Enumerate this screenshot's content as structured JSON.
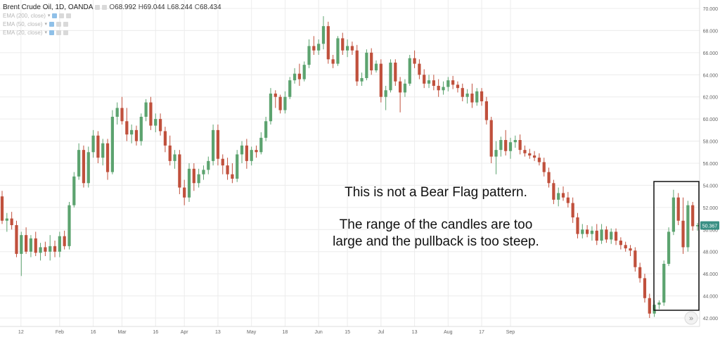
{
  "header": {
    "symbol": "Brent Crude Oil, 1D, OANDA",
    "open_label": "O",
    "open": "68.992",
    "high_label": "H",
    "high": "69.044",
    "low_label": "L",
    "low": "68.244",
    "close_label": "C",
    "close": "68.434",
    "indicators": [
      "EMA (200, close)",
      "EMA (50, close)",
      "EMA (20, close)"
    ]
  },
  "annotation": {
    "line1": "This is not a Bear Flag pattern.",
    "line2": "The range of the candles are too",
    "line3": "large and the pullback is too steep."
  },
  "scroll_button": "»",
  "colors": {
    "up": "#5ca36f",
    "down": "#c0503c",
    "grid": "#ececec",
    "price_tag": "#3a8f84"
  },
  "chart_data": {
    "type": "candlestick",
    "symbol": "Brent Crude Oil, 1D, OANDA",
    "ylim": [
      41,
      70.5
    ],
    "y_ticks": [
      "70.000",
      "68.000",
      "66.000",
      "64.000",
      "62.000",
      "60.000",
      "58.000",
      "56.000",
      "54.000",
      "52.000",
      "50.000",
      "48.000",
      "46.000",
      "44.000",
      "42.000"
    ],
    "x_ticks": [
      "12",
      "Feb",
      "16",
      "Mar",
      "16",
      "Apr",
      "13",
      "May",
      "18",
      "Jun",
      "15",
      "Jul",
      "13",
      "Aug",
      "17",
      "Sep"
    ],
    "x_tick_pos": [
      1,
      12,
      19,
      25,
      32,
      38,
      45,
      52,
      59,
      66,
      72,
      79,
      86,
      93,
      100,
      106
    ],
    "last_price": "50.367",
    "candles": [
      {
        "o": 53.0,
        "h": 53.5,
        "l": 50.5,
        "c": 50.8
      },
      {
        "o": 50.8,
        "h": 51.5,
        "l": 49.8,
        "c": 51.0
      },
      {
        "o": 51.0,
        "h": 51.6,
        "l": 50.0,
        "c": 50.4
      },
      {
        "o": 50.4,
        "h": 50.8,
        "l": 47.5,
        "c": 47.8
      },
      {
        "o": 47.8,
        "h": 49.8,
        "l": 45.8,
        "c": 49.5
      },
      {
        "o": 49.5,
        "h": 50.2,
        "l": 47.8,
        "c": 48.0
      },
      {
        "o": 48.0,
        "h": 49.5,
        "l": 47.5,
        "c": 49.2
      },
      {
        "o": 49.2,
        "h": 49.8,
        "l": 47.6,
        "c": 47.9
      },
      {
        "o": 47.9,
        "h": 48.8,
        "l": 47.2,
        "c": 48.4
      },
      {
        "o": 48.4,
        "h": 48.9,
        "l": 47.6,
        "c": 48.0
      },
      {
        "o": 48.0,
        "h": 49.5,
        "l": 47.2,
        "c": 48.5
      },
      {
        "o": 48.5,
        "h": 49.0,
        "l": 47.5,
        "c": 48.0
      },
      {
        "o": 48.0,
        "h": 49.8,
        "l": 47.5,
        "c": 49.4
      },
      {
        "o": 49.4,
        "h": 49.9,
        "l": 48.2,
        "c": 48.5
      },
      {
        "o": 48.5,
        "h": 52.5,
        "l": 48.2,
        "c": 52.2
      },
      {
        "o": 52.2,
        "h": 55.2,
        "l": 52.0,
        "c": 54.8
      },
      {
        "o": 54.8,
        "h": 57.8,
        "l": 54.5,
        "c": 57.2
      },
      {
        "o": 57.2,
        "h": 57.6,
        "l": 53.8,
        "c": 54.2
      },
      {
        "o": 54.2,
        "h": 57.5,
        "l": 53.8,
        "c": 57.0
      },
      {
        "o": 57.0,
        "h": 59.0,
        "l": 56.5,
        "c": 58.5
      },
      {
        "o": 58.5,
        "h": 58.9,
        "l": 56.0,
        "c": 56.5
      },
      {
        "o": 56.5,
        "h": 58.2,
        "l": 55.8,
        "c": 57.8
      },
      {
        "o": 57.8,
        "h": 58.2,
        "l": 54.5,
        "c": 55.2
      },
      {
        "o": 55.2,
        "h": 60.8,
        "l": 55.0,
        "c": 60.2
      },
      {
        "o": 60.2,
        "h": 61.5,
        "l": 59.5,
        "c": 61.0
      },
      {
        "o": 61.0,
        "h": 62.0,
        "l": 59.5,
        "c": 59.8
      },
      {
        "o": 59.8,
        "h": 61.0,
        "l": 58.0,
        "c": 58.6
      },
      {
        "o": 58.6,
        "h": 59.5,
        "l": 57.8,
        "c": 59.0
      },
      {
        "o": 59.0,
        "h": 59.4,
        "l": 57.6,
        "c": 58.0
      },
      {
        "o": 58.0,
        "h": 60.5,
        "l": 57.6,
        "c": 60.2
      },
      {
        "o": 60.2,
        "h": 61.8,
        "l": 59.8,
        "c": 61.5
      },
      {
        "o": 61.5,
        "h": 62.0,
        "l": 59.0,
        "c": 59.4
      },
      {
        "o": 59.4,
        "h": 60.5,
        "l": 58.8,
        "c": 60.0
      },
      {
        "o": 60.0,
        "h": 60.5,
        "l": 58.5,
        "c": 58.9
      },
      {
        "o": 58.9,
        "h": 59.3,
        "l": 57.0,
        "c": 57.6
      },
      {
        "o": 57.6,
        "h": 58.5,
        "l": 55.8,
        "c": 56.2
      },
      {
        "o": 56.2,
        "h": 57.2,
        "l": 55.5,
        "c": 56.8
      },
      {
        "o": 56.8,
        "h": 57.2,
        "l": 53.2,
        "c": 53.8
      },
      {
        "o": 53.8,
        "h": 54.5,
        "l": 52.2,
        "c": 52.9
      },
      {
        "o": 52.9,
        "h": 56.0,
        "l": 52.5,
        "c": 55.5
      },
      {
        "o": 55.5,
        "h": 56.0,
        "l": 53.5,
        "c": 54.2
      },
      {
        "o": 54.2,
        "h": 55.5,
        "l": 53.8,
        "c": 55.0
      },
      {
        "o": 55.0,
        "h": 55.8,
        "l": 54.5,
        "c": 55.4
      },
      {
        "o": 55.4,
        "h": 56.6,
        "l": 55.0,
        "c": 56.2
      },
      {
        "o": 56.2,
        "h": 59.5,
        "l": 55.8,
        "c": 59.0
      },
      {
        "o": 59.0,
        "h": 59.5,
        "l": 55.8,
        "c": 56.4
      },
      {
        "o": 56.4,
        "h": 56.8,
        "l": 55.0,
        "c": 55.8
      },
      {
        "o": 55.8,
        "h": 56.5,
        "l": 54.5,
        "c": 55.0
      },
      {
        "o": 55.0,
        "h": 56.0,
        "l": 54.2,
        "c": 54.6
      },
      {
        "o": 54.6,
        "h": 57.2,
        "l": 54.3,
        "c": 56.8
      },
      {
        "o": 56.8,
        "h": 58.0,
        "l": 56.0,
        "c": 57.6
      },
      {
        "o": 57.6,
        "h": 58.2,
        "l": 55.5,
        "c": 56.2
      },
      {
        "o": 56.2,
        "h": 57.5,
        "l": 55.8,
        "c": 57.2
      },
      {
        "o": 57.2,
        "h": 57.6,
        "l": 56.5,
        "c": 57.0
      },
      {
        "o": 57.0,
        "h": 58.8,
        "l": 56.8,
        "c": 58.3
      },
      {
        "o": 58.3,
        "h": 60.2,
        "l": 58.0,
        "c": 59.8
      },
      {
        "o": 59.8,
        "h": 62.8,
        "l": 59.5,
        "c": 62.3
      },
      {
        "o": 62.3,
        "h": 62.6,
        "l": 61.0,
        "c": 62.0
      },
      {
        "o": 62.0,
        "h": 62.2,
        "l": 60.5,
        "c": 60.8
      },
      {
        "o": 60.8,
        "h": 62.5,
        "l": 60.5,
        "c": 62.0
      },
      {
        "o": 62.0,
        "h": 63.8,
        "l": 61.8,
        "c": 63.5
      },
      {
        "o": 63.5,
        "h": 64.6,
        "l": 63.2,
        "c": 64.1
      },
      {
        "o": 64.1,
        "h": 65.0,
        "l": 63.0,
        "c": 63.6
      },
      {
        "o": 63.6,
        "h": 65.2,
        "l": 63.4,
        "c": 64.9
      },
      {
        "o": 64.9,
        "h": 67.2,
        "l": 64.6,
        "c": 66.6
      },
      {
        "o": 66.6,
        "h": 67.5,
        "l": 65.8,
        "c": 66.2
      },
      {
        "o": 66.2,
        "h": 67.2,
        "l": 65.8,
        "c": 66.8
      },
      {
        "o": 66.8,
        "h": 69.3,
        "l": 66.3,
        "c": 68.4
      },
      {
        "o": 68.4,
        "h": 68.8,
        "l": 65.0,
        "c": 65.4
      },
      {
        "o": 65.4,
        "h": 65.8,
        "l": 64.6,
        "c": 65.0
      },
      {
        "o": 65.0,
        "h": 67.5,
        "l": 64.8,
        "c": 67.3
      },
      {
        "o": 67.3,
        "h": 67.8,
        "l": 65.8,
        "c": 66.2
      },
      {
        "o": 66.2,
        "h": 67.2,
        "l": 65.6,
        "c": 66.6
      },
      {
        "o": 66.6,
        "h": 67.0,
        "l": 65.8,
        "c": 66.2
      },
      {
        "o": 66.2,
        "h": 66.7,
        "l": 63.0,
        "c": 63.4
      },
      {
        "o": 63.4,
        "h": 64.2,
        "l": 63.0,
        "c": 63.7
      },
      {
        "o": 63.7,
        "h": 66.3,
        "l": 63.5,
        "c": 66.0
      },
      {
        "o": 66.0,
        "h": 66.4,
        "l": 64.0,
        "c": 64.4
      },
      {
        "o": 64.4,
        "h": 65.3,
        "l": 64.2,
        "c": 65.0
      },
      {
        "o": 65.0,
        "h": 65.4,
        "l": 61.5,
        "c": 62.0
      },
      {
        "o": 62.0,
        "h": 63.0,
        "l": 60.8,
        "c": 62.6
      },
      {
        "o": 62.6,
        "h": 65.4,
        "l": 62.4,
        "c": 65.1
      },
      {
        "o": 65.1,
        "h": 65.4,
        "l": 63.0,
        "c": 63.4
      },
      {
        "o": 63.4,
        "h": 63.8,
        "l": 60.6,
        "c": 62.4
      },
      {
        "o": 62.4,
        "h": 63.6,
        "l": 62.0,
        "c": 63.2
      },
      {
        "o": 63.2,
        "h": 65.8,
        "l": 63.0,
        "c": 65.5
      },
      {
        "o": 65.5,
        "h": 66.2,
        "l": 64.6,
        "c": 65.0
      },
      {
        "o": 65.0,
        "h": 65.4,
        "l": 63.6,
        "c": 64.0
      },
      {
        "o": 64.0,
        "h": 64.5,
        "l": 62.8,
        "c": 63.2
      },
      {
        "o": 63.2,
        "h": 64.0,
        "l": 62.8,
        "c": 63.5
      },
      {
        "o": 63.5,
        "h": 64.0,
        "l": 62.6,
        "c": 63.0
      },
      {
        "o": 63.0,
        "h": 63.6,
        "l": 62.0,
        "c": 62.6
      },
      {
        "o": 62.6,
        "h": 63.4,
        "l": 62.2,
        "c": 62.9
      },
      {
        "o": 62.9,
        "h": 63.8,
        "l": 62.5,
        "c": 63.5
      },
      {
        "o": 63.5,
        "h": 63.9,
        "l": 62.7,
        "c": 63.1
      },
      {
        "o": 63.1,
        "h": 63.4,
        "l": 62.4,
        "c": 62.8
      },
      {
        "o": 62.8,
        "h": 63.2,
        "l": 61.6,
        "c": 62.0
      },
      {
        "o": 62.0,
        "h": 62.7,
        "l": 61.4,
        "c": 62.3
      },
      {
        "o": 62.3,
        "h": 63.2,
        "l": 61.0,
        "c": 61.5
      },
      {
        "o": 61.5,
        "h": 62.8,
        "l": 61.2,
        "c": 62.5
      },
      {
        "o": 62.5,
        "h": 62.8,
        "l": 61.2,
        "c": 61.6
      },
      {
        "o": 61.6,
        "h": 62.0,
        "l": 59.5,
        "c": 59.9
      },
      {
        "o": 59.9,
        "h": 60.2,
        "l": 56.0,
        "c": 56.6
      },
      {
        "o": 56.6,
        "h": 58.0,
        "l": 55.0,
        "c": 57.2
      },
      {
        "o": 57.2,
        "h": 58.4,
        "l": 56.6,
        "c": 58.1
      },
      {
        "o": 58.1,
        "h": 59.0,
        "l": 56.7,
        "c": 57.1
      },
      {
        "o": 57.1,
        "h": 58.3,
        "l": 56.4,
        "c": 57.9
      },
      {
        "o": 57.9,
        "h": 58.5,
        "l": 57.4,
        "c": 58.1
      },
      {
        "o": 58.1,
        "h": 58.6,
        "l": 56.8,
        "c": 57.2
      },
      {
        "o": 57.2,
        "h": 57.6,
        "l": 56.6,
        "c": 56.9
      },
      {
        "o": 56.9,
        "h": 57.3,
        "l": 56.4,
        "c": 56.7
      },
      {
        "o": 56.7,
        "h": 57.1,
        "l": 56.2,
        "c": 56.5
      },
      {
        "o": 56.5,
        "h": 56.9,
        "l": 55.8,
        "c": 56.1
      },
      {
        "o": 56.1,
        "h": 56.5,
        "l": 54.8,
        "c": 55.2
      },
      {
        "o": 55.2,
        "h": 55.6,
        "l": 53.8,
        "c": 54.2
      },
      {
        "o": 54.2,
        "h": 54.5,
        "l": 52.3,
        "c": 52.7
      },
      {
        "o": 52.7,
        "h": 53.8,
        "l": 52.1,
        "c": 53.3
      },
      {
        "o": 53.3,
        "h": 53.9,
        "l": 52.6,
        "c": 52.9
      },
      {
        "o": 52.9,
        "h": 53.4,
        "l": 52.0,
        "c": 52.4
      },
      {
        "o": 52.4,
        "h": 52.9,
        "l": 50.6,
        "c": 51.1
      },
      {
        "o": 51.1,
        "h": 51.5,
        "l": 49.2,
        "c": 49.6
      },
      {
        "o": 49.6,
        "h": 50.5,
        "l": 49.2,
        "c": 50.0
      },
      {
        "o": 50.0,
        "h": 50.4,
        "l": 49.3,
        "c": 49.6
      },
      {
        "o": 49.6,
        "h": 50.3,
        "l": 49.0,
        "c": 49.9
      },
      {
        "o": 49.9,
        "h": 50.5,
        "l": 48.6,
        "c": 49.0
      },
      {
        "o": 49.0,
        "h": 50.5,
        "l": 48.7,
        "c": 50.0
      },
      {
        "o": 50.0,
        "h": 50.3,
        "l": 48.8,
        "c": 49.1
      },
      {
        "o": 49.1,
        "h": 50.1,
        "l": 48.7,
        "c": 49.8
      },
      {
        "o": 49.8,
        "h": 50.1,
        "l": 48.6,
        "c": 49.0
      },
      {
        "o": 49.0,
        "h": 49.3,
        "l": 48.2,
        "c": 48.6
      },
      {
        "o": 48.6,
        "h": 48.9,
        "l": 48.0,
        "c": 48.3
      },
      {
        "o": 48.3,
        "h": 48.6,
        "l": 47.6,
        "c": 48.1
      },
      {
        "o": 48.1,
        "h": 48.4,
        "l": 46.2,
        "c": 46.6
      },
      {
        "o": 46.6,
        "h": 47.0,
        "l": 45.2,
        "c": 45.6
      },
      {
        "o": 45.6,
        "h": 46.0,
        "l": 43.4,
        "c": 43.8
      },
      {
        "o": 43.8,
        "h": 44.2,
        "l": 42.0,
        "c": 42.4
      },
      {
        "o": 42.4,
        "h": 43.6,
        "l": 42.1,
        "c": 43.2
      },
      {
        "o": 43.2,
        "h": 43.6,
        "l": 42.8,
        "c": 43.4
      },
      {
        "o": 43.4,
        "h": 47.2,
        "l": 43.1,
        "c": 46.9
      },
      {
        "o": 46.9,
        "h": 50.2,
        "l": 46.7,
        "c": 49.8
      },
      {
        "o": 49.8,
        "h": 53.6,
        "l": 49.5,
        "c": 52.9
      },
      {
        "o": 52.9,
        "h": 53.3,
        "l": 50.4,
        "c": 50.8
      },
      {
        "o": 50.8,
        "h": 52.9,
        "l": 47.8,
        "c": 48.4
      },
      {
        "o": 48.4,
        "h": 52.6,
        "l": 48.0,
        "c": 52.2
      },
      {
        "o": 52.2,
        "h": 52.5,
        "l": 49.9,
        "c": 50.3
      },
      {
        "o": 50.3,
        "h": 50.6,
        "l": 49.9,
        "c": 50.4
      }
    ]
  }
}
